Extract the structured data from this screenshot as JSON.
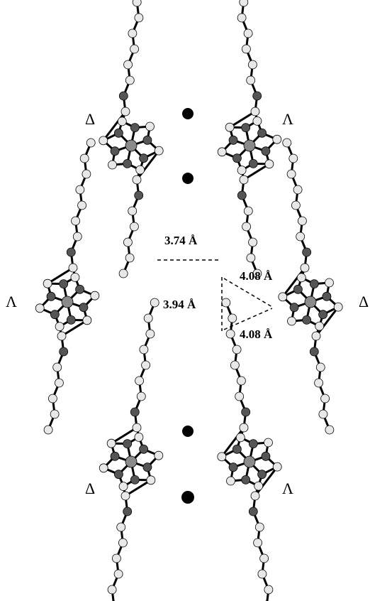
{
  "chirality_labels": [
    "Δ",
    "Λ",
    "Λ",
    "Δ",
    "Δ",
    "Λ"
  ],
  "distances": [
    "3.74 Å",
    "3.94 Å",
    "4.08 Å",
    "4.08 Å"
  ]
}
